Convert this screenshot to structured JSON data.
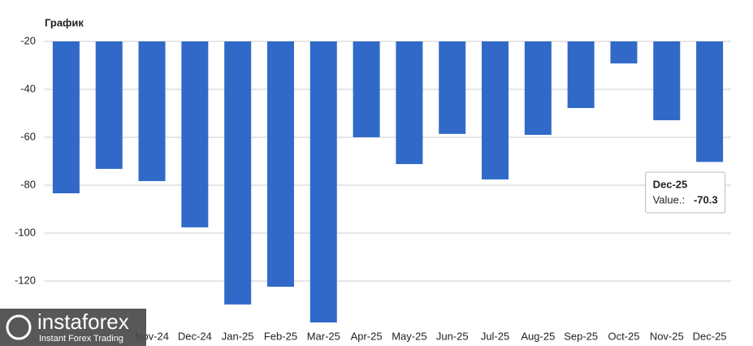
{
  "chart_data": {
    "type": "bar",
    "title": "График",
    "categories": [
      null,
      null,
      "Nov-24",
      "Dec-24",
      "Jan-25",
      "Feb-25",
      "Mar-25",
      "Apr-25",
      "May-25",
      "Jun-25",
      "Jul-25",
      "Aug-25",
      "Sep-25",
      "Oct-25",
      "Nov-25",
      "Dec-25"
    ],
    "values": [
      -83.4,
      -73.2,
      -78.3,
      -97.6,
      -129.8,
      -122.4,
      -137.3,
      -60,
      -71.2,
      -58.6,
      -77.6,
      -59,
      -47.8,
      -29.2,
      -52.9,
      -70.3
    ],
    "color": "#3169c9",
    "ylim": [
      -20,
      -139
    ],
    "yticks": [
      -20,
      -40,
      -60,
      -80,
      -100,
      -120
    ],
    "grid": true,
    "tooltip": {
      "category": "Dec-25",
      "label": "Value.:",
      "index": 15
    }
  },
  "watermark": {
    "brand": "instaforex",
    "tagline": "Instant Forex Trading"
  }
}
